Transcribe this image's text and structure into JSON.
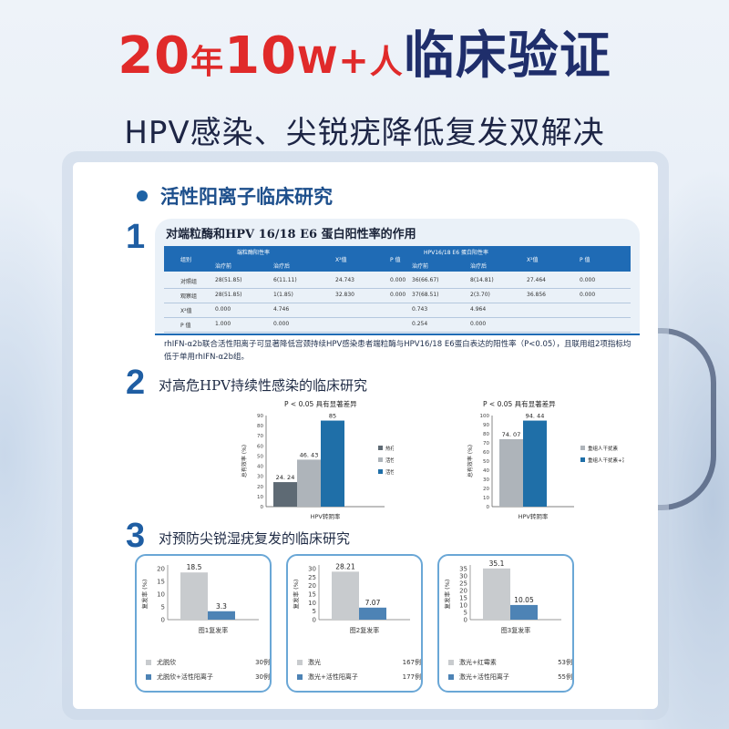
{
  "header": {
    "title_parts": [
      "20",
      "年",
      "10",
      "W+",
      "人",
      "临床验证"
    ],
    "subtitle": "HPV感染、尖锐疣降低复发双解决"
  },
  "card": {
    "heading": "活性阳离子临床研究",
    "sections": [
      {
        "num": "1",
        "title": "对端粒酶和HPV 16/18 E6 蛋白阳性率的作用"
      },
      {
        "num": "2",
        "title": "对高危HPV持续性感染的临床研究"
      },
      {
        "num": "3",
        "title": "对预防尖锐湿疣复发的临床研究"
      }
    ]
  },
  "table": {
    "group_header_1": "端粒酶阳性率",
    "group_header_2": "HPV16/18 E6 蛋白阳性率",
    "col_group": "组别",
    "col_before": "治疗前",
    "col_after": "治疗后",
    "col_chi": "X²值",
    "col_p": "P 值",
    "col_before2": "治疗前",
    "col_after2": "治疗后",
    "col_chi2": "X²值",
    "col_p2": "P 值",
    "rows": [
      [
        "对照组",
        "28(51.85)",
        "6(11.11)",
        "24.743",
        "0.000",
        "36(66.67)",
        "8(14.81)",
        "27.464",
        "0.000"
      ],
      [
        "观察组",
        "28(51.85)",
        "1(1.85)",
        "32.830",
        "0.000",
        "37(68.51)",
        "2(3.70)",
        "36.856",
        "0.000"
      ],
      [
        "X²值",
        "0.000",
        "4.746",
        "",
        "",
        "0.743",
        "4.964",
        "",
        ""
      ],
      [
        "P 值",
        "1.000",
        "0.000",
        "",
        "",
        "0.254",
        "0.000",
        "",
        ""
      ]
    ],
    "note": "rhIFN-α2b联合活性阳离子可显著降低宫颈持续HPV感染患者端粒酶与HPV16/18 E6蛋白表达的阳性率（P<0.05），且联用组2项指标均低于单用rhIFN-α2b组。"
  },
  "chart_data": [
    {
      "type": "bar",
      "title": "P < 0.05  具有显著差异",
      "xlabel": "HPV转阴率",
      "ylabel": "总有效率 (%)",
      "ylim": [
        0,
        90
      ],
      "yticks": [
        "0",
        "10",
        "20",
        "30",
        "40",
        "50",
        "60",
        "70",
        "80",
        "90"
      ],
      "categories": [
        "热疗",
        "活性阳离子",
        "活性阳离子+热疗"
      ],
      "values": [
        24.24,
        46.43,
        85
      ],
      "value_labels": [
        "24. 24",
        "46. 43",
        "85"
      ],
      "colors": [
        "#5e6a74",
        "#aeb4ba",
        "#1f6fa8"
      ],
      "legend": [
        {
          "name": "热疗",
          "n": "66例"
        },
        {
          "name": "活性阳离子",
          "n": "56例"
        },
        {
          "name": "活性阳离子+热疗",
          "n": "60例"
        }
      ]
    },
    {
      "type": "bar",
      "title": "P < 0.05  具有显著差异",
      "xlabel": "HPV转阴率",
      "ylabel": "总有效率 (%)",
      "ylim": [
        0,
        100
      ],
      "yticks": [
        "0",
        "10",
        "20",
        "30",
        "40",
        "50",
        "60",
        "70",
        "80",
        "90",
        "100"
      ],
      "categories": [
        "重组人干扰素",
        "重组人干扰素+活性阳离子"
      ],
      "values": [
        74.07,
        94.44
      ],
      "value_labels": [
        "74. 07",
        "94. 44"
      ],
      "colors": [
        "#aeb4ba",
        "#1f6fa8"
      ],
      "legend": [
        {
          "name": "重组人干扰素",
          "n": "54例"
        },
        {
          "name": "重组人干扰素+活性阳离子",
          "n": "54例"
        }
      ]
    },
    {
      "type": "bar",
      "xlabel": "图1复发率",
      "ylabel": "复发率 (%)",
      "ylim": [
        0,
        20
      ],
      "yticks": [
        "0",
        "5",
        "10",
        "15",
        "20"
      ],
      "categories": [
        "尤脱欣",
        "尤脱欣+活性阳离子"
      ],
      "values": [
        18.5,
        3.3
      ],
      "value_labels": [
        "18.5",
        "3.3"
      ],
      "colors": [
        "#c8cbce",
        "#4d83b5"
      ],
      "legend": [
        {
          "name": "尤脱欣",
          "n": "30例"
        },
        {
          "name": "尤脱欣+活性阳离子",
          "n": "30例"
        }
      ]
    },
    {
      "type": "bar",
      "xlabel": "图2复发率",
      "ylabel": "复发率 (%)",
      "ylim": [
        0,
        30
      ],
      "yticks": [
        "0",
        "5",
        "10",
        "15",
        "20",
        "25",
        "30"
      ],
      "categories": [
        "激光",
        "激光+活性阳离子"
      ],
      "values": [
        28.21,
        7.07
      ],
      "value_labels": [
        "28.21",
        "7.07"
      ],
      "colors": [
        "#c8cbce",
        "#4d83b5"
      ],
      "legend": [
        {
          "name": "激光",
          "n": "167例"
        },
        {
          "name": "激光+活性阳离子",
          "n": "177例"
        }
      ]
    },
    {
      "type": "bar",
      "xlabel": "图3复发率",
      "ylabel": "复发率 (%)",
      "ylim": [
        0,
        35
      ],
      "yticks": [
        "0",
        "5",
        "10",
        "15",
        "20",
        "25",
        "30",
        "35"
      ],
      "categories": [
        "激光+红霉素",
        "激光+活性阳离子"
      ],
      "values": [
        35.1,
        10.05
      ],
      "value_labels": [
        "35.1",
        "10.05"
      ],
      "colors": [
        "#c8cbce",
        "#4d83b5"
      ],
      "legend": [
        {
          "name": "激光+红霉素",
          "n": "53例"
        },
        {
          "name": "激光+活性阳离子",
          "n": "55例"
        }
      ]
    }
  ]
}
